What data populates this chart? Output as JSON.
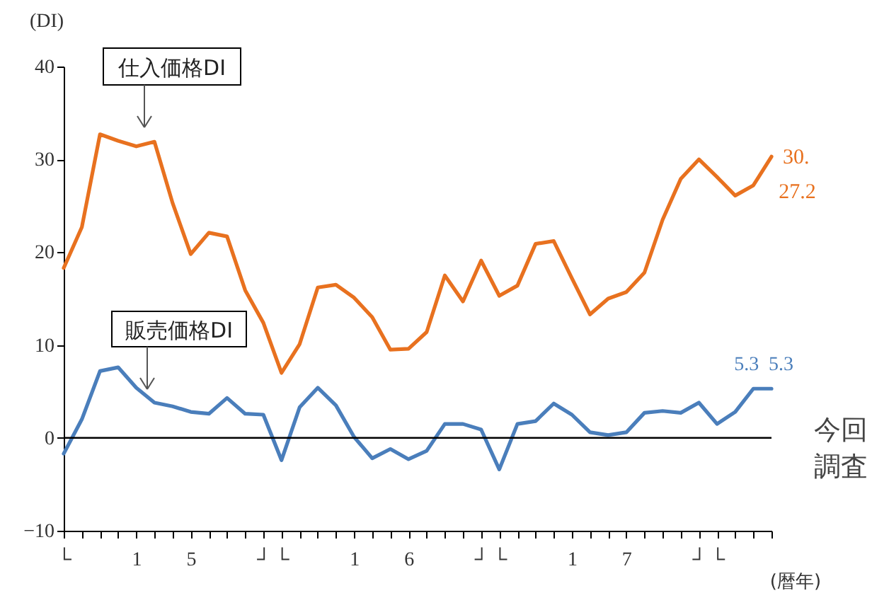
{
  "chart_data": {
    "type": "line",
    "ylabel": "(DI)",
    "xlabel": "(暦年)",
    "categories": [
      "└",
      null,
      null,
      null,
      "1",
      null,
      null,
      "5",
      null,
      null,
      null,
      "┘",
      "└",
      null,
      null,
      null,
      "1",
      null,
      null,
      "6",
      null,
      null,
      null,
      "┘",
      "└",
      null,
      null,
      null,
      "1",
      null,
      null,
      "7",
      null,
      null,
      null,
      "┘",
      "└",
      null,
      null,
      null
    ],
    "series": [
      {
        "name": "仕入価格DI",
        "color": "#e8711f",
        "values": [
          18.3,
          22.7,
          32.7,
          32.0,
          31.4,
          31.9,
          25.3,
          19.8,
          22.1,
          21.7,
          15.9,
          12.4,
          7.0,
          10.1,
          16.2,
          16.5,
          15.1,
          13.0,
          9.5,
          9.6,
          11.4,
          17.5,
          14.7,
          19.1,
          15.3,
          16.4,
          20.9,
          21.2,
          17.2,
          13.3,
          15.0,
          15.7,
          17.8,
          23.5,
          27.9,
          30.0,
          28.1,
          26.1,
          27.2,
          30.3
        ],
        "value_labels": [
          null,
          null,
          null,
          null,
          null,
          null,
          null,
          null,
          null,
          null,
          null,
          null,
          null,
          null,
          null,
          null,
          null,
          null,
          null,
          null,
          null,
          null,
          null,
          null,
          null,
          null,
          null,
          null,
          null,
          null,
          null,
          null,
          null,
          null,
          null,
          null,
          null,
          null,
          "27.2",
          "30."
        ]
      },
      {
        "name": "販売価格DI",
        "color": "#4a7ebb",
        "values": [
          -1.7,
          2.0,
          7.2,
          7.6,
          5.4,
          3.8,
          3.4,
          2.8,
          2.6,
          4.3,
          2.6,
          2.5,
          -2.4,
          3.3,
          5.4,
          3.5,
          0.1,
          -2.2,
          -1.2,
          -2.3,
          -1.4,
          1.5,
          1.5,
          0.9,
          -3.4,
          1.5,
          1.8,
          3.7,
          2.5,
          0.6,
          0.3,
          0.6,
          2.7,
          2.9,
          2.7,
          3.8,
          1.5,
          2.8,
          5.3,
          5.3
        ],
        "value_labels": [
          null,
          null,
          null,
          null,
          null,
          null,
          null,
          null,
          null,
          null,
          null,
          null,
          null,
          null,
          null,
          null,
          null,
          null,
          null,
          null,
          null,
          null,
          null,
          null,
          null,
          null,
          null,
          null,
          null,
          null,
          null,
          null,
          null,
          null,
          null,
          null,
          null,
          null,
          "5.3",
          "5.3"
        ]
      }
    ],
    "ylim": [
      -10,
      40
    ],
    "yticks": [
      -10,
      0,
      10,
      20,
      30,
      40
    ],
    "grid": false,
    "ref_lines": [
      {
        "axis": "y",
        "value": 0,
        "color": "#000000"
      }
    ],
    "annotations": [
      "今回調査"
    ]
  }
}
